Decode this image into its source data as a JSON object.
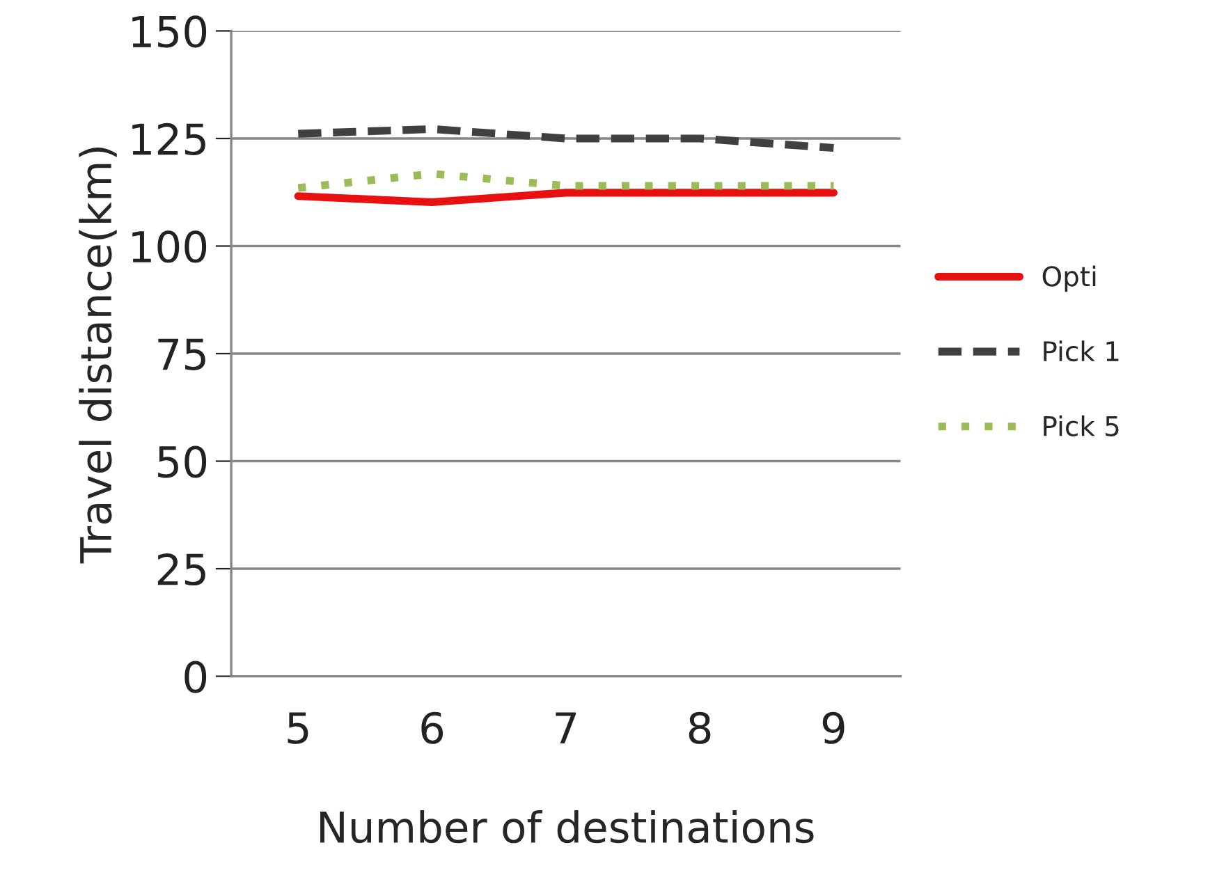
{
  "chart_data": {
    "type": "line",
    "xlabel": "Number of destinations",
    "ylabel": "Travel distance(km)",
    "categories": [
      "5",
      "6",
      "7",
      "8",
      "9"
    ],
    "series": [
      {
        "name": "Opti",
        "color": "#e81010",
        "line_style": "solid",
        "values": [
          111.6,
          110.2,
          112.4,
          112.4,
          112.4
        ]
      },
      {
        "name": "Pick 1",
        "color": "#404040",
        "line_style": "dashed",
        "values": [
          126.1,
          127.2,
          125,
          125,
          122.8
        ]
      },
      {
        "name": "Pick 5",
        "color": "#9bbb59",
        "line_style": "dotted",
        "values": [
          113.5,
          116.8,
          114,
          114,
          114
        ]
      }
    ],
    "ylim": [
      0,
      150
    ],
    "yticks": [
      0,
      25,
      50,
      75,
      100,
      125,
      150
    ],
    "grid": "y",
    "legend": "right",
    "marker": "none"
  }
}
